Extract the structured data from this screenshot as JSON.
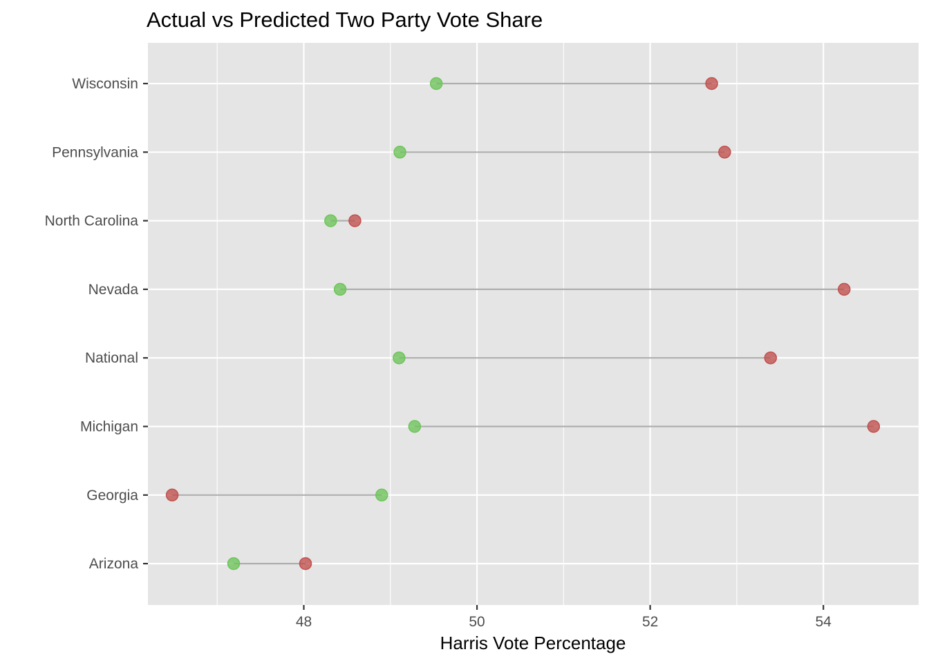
{
  "chart_data": {
    "type": "dumbbell",
    "title": "Actual vs Predicted Two Party Vote Share",
    "xlabel": "Harris Vote Percentage",
    "ylabel": "",
    "xlim": [
      46.2,
      55.1
    ],
    "x_ticks": [
      48,
      50,
      52,
      54
    ],
    "x_tick_labels": [
      "48",
      "50",
      "52",
      "54"
    ],
    "x_minor_grid": [
      47,
      49,
      51,
      53
    ],
    "grid": true,
    "legend": "none",
    "categories": [
      "Wisconsin",
      "Pennsylvania",
      "North Carolina",
      "Nevada",
      "National",
      "Michigan",
      "Georgia",
      "Arizona"
    ],
    "series": [
      {
        "color": "#6dc45a",
        "values": [
          49.53,
          49.11,
          48.31,
          48.42,
          49.1,
          49.28,
          48.9,
          47.19
        ]
      },
      {
        "color": "#c0504d",
        "values": [
          52.71,
          52.86,
          48.59,
          54.24,
          53.39,
          54.58,
          46.48,
          48.02
        ]
      }
    ],
    "colors": {
      "panel": "#e5e5e5",
      "grid": "#ffffff",
      "segment": "#adadad"
    }
  }
}
